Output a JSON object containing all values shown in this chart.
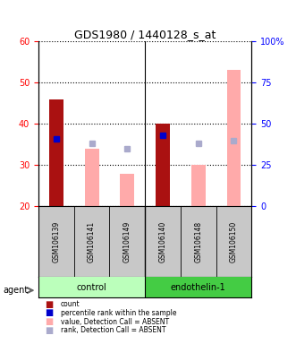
{
  "title": "GDS1980 / 1440128_s_at",
  "samples": [
    "GSM106139",
    "GSM106141",
    "GSM106149",
    "GSM106140",
    "GSM106148",
    "GSM106150"
  ],
  "count_values": [
    46,
    null,
    null,
    40,
    null,
    null
  ],
  "count_color": "#aa1111",
  "percentile_rank_values": [
    41,
    null,
    null,
    43,
    null,
    null
  ],
  "percentile_rank_color": "#0000cc",
  "absent_value_values": [
    null,
    34,
    28,
    null,
    30,
    53
  ],
  "absent_value_color": "#ffaaaa",
  "absent_rank_values": [
    null,
    38,
    35,
    null,
    38,
    40
  ],
  "absent_rank_color": "#aaaacc",
  "ylim_left": [
    20,
    60
  ],
  "ylim_right": [
    0,
    100
  ],
  "yticks_left": [
    20,
    30,
    40,
    50,
    60
  ],
  "yticks_right": [
    0,
    25,
    50,
    75,
    100
  ],
  "ytick_labels_right": [
    "0",
    "25",
    "50",
    "75",
    "100%"
  ],
  "bar_width": 0.4,
  "legend_items": [
    {
      "label": "count",
      "color": "#aa1111"
    },
    {
      "label": "percentile rank within the sample",
      "color": "#0000cc"
    },
    {
      "label": "value, Detection Call = ABSENT",
      "color": "#ffaaaa"
    },
    {
      "label": "rank, Detection Call = ABSENT",
      "color": "#aaaacc"
    }
  ]
}
